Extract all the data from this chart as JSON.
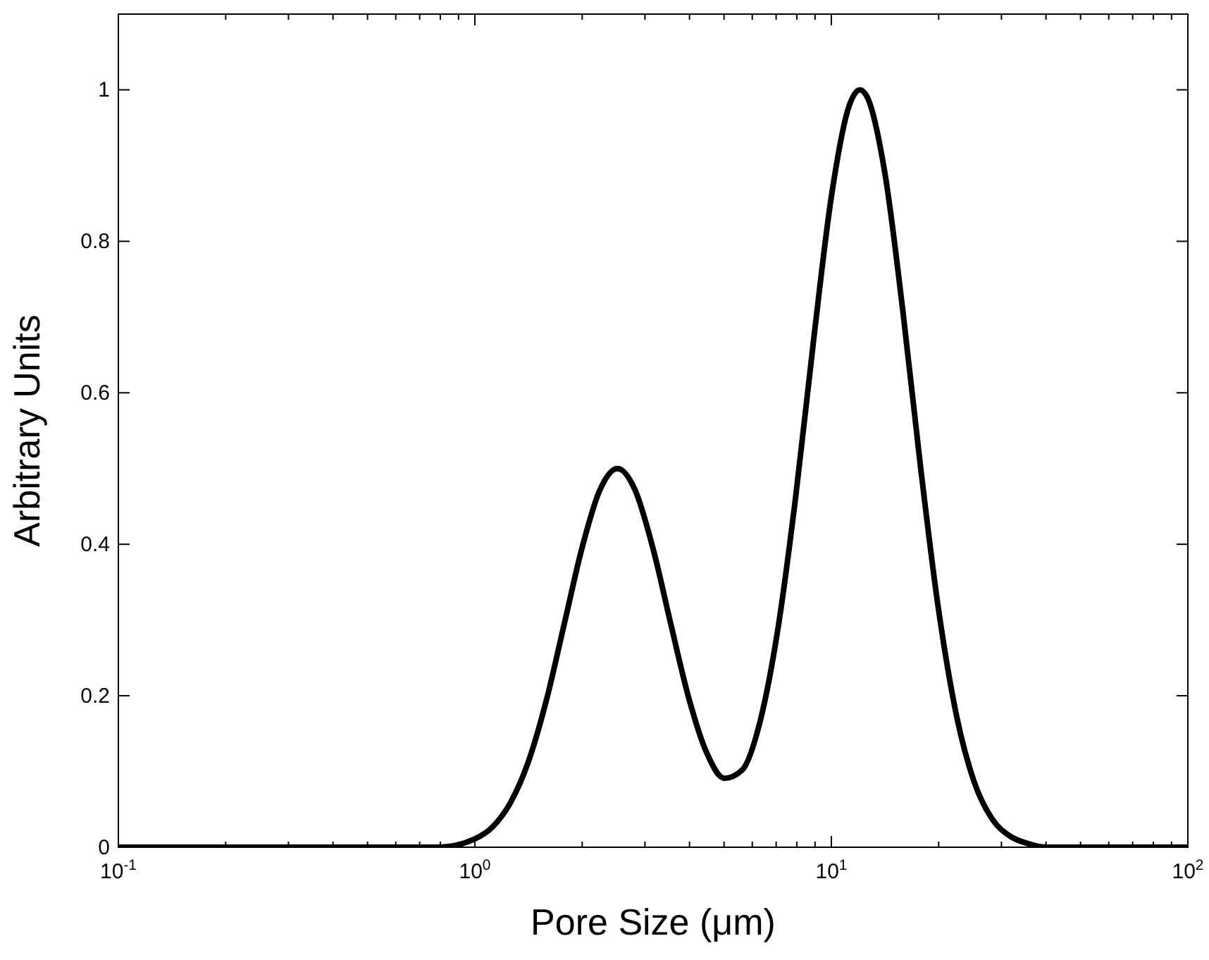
{
  "chart_data": {
    "type": "line",
    "xlabel": "Pore Size (μm)",
    "ylabel": "Arbitrary Units",
    "log": "x",
    "grid": false,
    "xlim": [
      0.1,
      100
    ],
    "ylim": [
      0,
      1.1
    ],
    "xticks": [
      {
        "value": 0.1,
        "label": "10$^{-1}$"
      },
      {
        "value": 0.2,
        "label": null
      },
      {
        "value": 0.3,
        "label": null
      },
      {
        "value": 0.4,
        "label": null
      },
      {
        "value": 0.5,
        "label": null
      },
      {
        "value": 0.6,
        "label": null
      },
      {
        "value": 0.7,
        "label": null
      },
      {
        "value": 0.8,
        "label": null
      },
      {
        "value": 0.9,
        "label": null
      },
      {
        "value": 1,
        "label": "10$^{0}$"
      },
      {
        "value": 2,
        "label": null
      },
      {
        "value": 3,
        "label": null
      },
      {
        "value": 4,
        "label": null
      },
      {
        "value": 5,
        "label": null
      },
      {
        "value": 6,
        "label": null
      },
      {
        "value": 7,
        "label": null
      },
      {
        "value": 8,
        "label": null
      },
      {
        "value": 9,
        "label": null
      },
      {
        "value": 10,
        "label": "10$^{1}$"
      },
      {
        "value": 20,
        "label": null
      },
      {
        "value": 30,
        "label": null
      },
      {
        "value": 40,
        "label": null
      },
      {
        "value": 50,
        "label": null
      },
      {
        "value": 60,
        "label": null
      },
      {
        "value": 70,
        "label": null
      },
      {
        "value": 80,
        "label": null
      },
      {
        "value": 90,
        "label": null
      },
      {
        "value": 100,
        "label": "10$^{2}$"
      }
    ],
    "yticks": [
      0,
      0.2,
      0.4,
      0.6,
      0.8,
      1
    ],
    "marker": "none",
    "line_style": "solid",
    "series": [
      {
        "color": "#000000",
        "x": [
          0.1,
          0.316,
          0.631,
          0.794,
          1,
          1.122,
          1.259,
          1.413,
          1.585,
          1.778,
          1.995,
          2.239,
          2.512,
          2.818,
          3.162,
          3.548,
          3.981,
          4.467,
          5.012,
          5.623,
          6.31,
          7.079,
          7.943,
          8.913,
          10,
          11.22,
          12.02,
          12.59,
          14.13,
          15.85,
          17.78,
          19.95,
          22.39,
          25.12,
          28.18,
          31.62,
          35.48,
          39.81,
          50.12,
          100
        ],
        "values": [
          0,
          0,
          0,
          0,
          0.011,
          0.027,
          0.059,
          0.113,
          0.193,
          0.293,
          0.394,
          0.471,
          0.5,
          0.471,
          0.394,
          0.294,
          0.197,
          0.125,
          0.091,
          0.102,
          0.166,
          0.288,
          0.463,
          0.669,
          0.859,
          0.979,
          1,
          0.991,
          0.89,
          0.71,
          0.503,
          0.316,
          0.176,
          0.087,
          0.038,
          0.015,
          0.005,
          0,
          0,
          0
        ]
      }
    ]
  }
}
